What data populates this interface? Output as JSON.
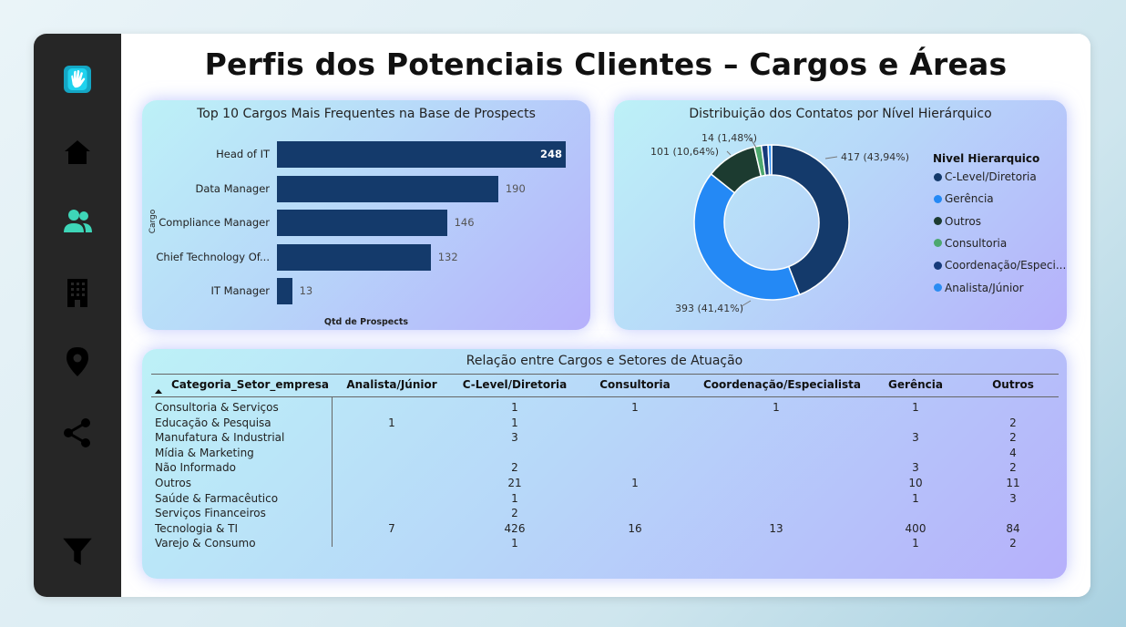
{
  "page": {
    "title": "Perfis dos Potenciais Clientes – Cargos e Áreas"
  },
  "sidebar": {
    "items": [
      {
        "icon": "hand-logo-icon"
      },
      {
        "icon": "home-icon"
      },
      {
        "icon": "people-icon"
      },
      {
        "icon": "building-icon"
      },
      {
        "icon": "location-pin-icon"
      },
      {
        "icon": "share-icon"
      },
      {
        "icon": "filter-icon"
      }
    ],
    "active_color": "#3ed6b8"
  },
  "bar_chart": {
    "title": "Top 10 Cargos Mais Frequentes na Base de Prospects",
    "ylabel": "Cargo",
    "xlabel": "Qtd de Prospects",
    "labels": [
      "Head of IT",
      "Data Manager",
      "Compliance Manager",
      "Chief Technology Of...",
      "IT Manager"
    ],
    "value_labels": [
      "248",
      "190",
      "146",
      "132",
      "13"
    ]
  },
  "donut_chart": {
    "title": "Distribuição dos Contatos por Nível Hierárquico",
    "legend_title": "Nivel Hierarquico",
    "legend": [
      "C-Level/Diretoria",
      "Gerência",
      "Outros",
      "Consultoria",
      "Coordenação/Especi...",
      "Analista/Júnior"
    ],
    "slice_labels": [
      "417 (43,94%)",
      "393 (41,41%)",
      "101 (10,64%)",
      "14 (1,48%)"
    ]
  },
  "matrix": {
    "title": "Relação entre Cargos e Setores de Atuação",
    "row_header": "Categoria_Setor_empresa",
    "sort_icon": "sort-ascending-icon",
    "columns": [
      "Analista/Júnior",
      "C-Level/Diretoria",
      "Consultoria",
      "Coordenação/Especialista",
      "Gerência",
      "Outros"
    ],
    "rows": [
      {
        "label": "Consultoria & Serviços",
        "cells": [
          "",
          "1",
          "1",
          "1",
          "1",
          ""
        ]
      },
      {
        "label": "Educação & Pesquisa",
        "cells": [
          "1",
          "1",
          "",
          "",
          "",
          "2"
        ]
      },
      {
        "label": "Manufatura & Industrial",
        "cells": [
          "",
          "3",
          "",
          "",
          "3",
          "2"
        ]
      },
      {
        "label": "Mídia & Marketing",
        "cells": [
          "",
          "",
          "",
          "",
          "",
          "4"
        ]
      },
      {
        "label": "Não Informado",
        "cells": [
          "",
          "2",
          "",
          "",
          "3",
          "2"
        ]
      },
      {
        "label": "Outros",
        "cells": [
          "",
          "21",
          "1",
          "",
          "10",
          "11"
        ]
      },
      {
        "label": "Saúde & Farmacêutico",
        "cells": [
          "",
          "1",
          "",
          "",
          "1",
          "3"
        ]
      },
      {
        "label": "Serviços Financeiros",
        "cells": [
          "",
          "2",
          "",
          "",
          "",
          ""
        ]
      },
      {
        "label": "Tecnologia & TI",
        "cells": [
          "7",
          "426",
          "16",
          "13",
          "400",
          "84"
        ]
      },
      {
        "label": "Varejo & Consumo",
        "cells": [
          "",
          "1",
          "",
          "",
          "1",
          "2"
        ]
      }
    ]
  },
  "chart_data": [
    {
      "type": "bar",
      "title": "Top 10 Cargos Mais Frequentes na Base de Prospects",
      "xlabel": "Qtd de Prospects",
      "ylabel": "Cargo",
      "categories": [
        "Head of IT",
        "Data Manager",
        "Compliance Manager",
        "Chief Technology Of...",
        "IT Manager"
      ],
      "values": [
        248,
        190,
        146,
        132,
        13
      ],
      "color": "#143a6b"
    },
    {
      "type": "pie",
      "title": "Distribuição dos Contatos por Nível Hierárquico",
      "legend_title": "Nivel Hierarquico",
      "legend_position": "right",
      "categories": [
        "C-Level/Diretoria",
        "Gerência",
        "Outros",
        "Consultoria",
        "Coordenação/Especi...",
        "Analista/Júnior"
      ],
      "values": [
        417,
        393,
        101,
        14,
        13,
        7
      ],
      "colors": [
        "#143a6b",
        "#2489f5",
        "#1c3b30",
        "#4da86e",
        "#163a7a",
        "#2a8cf2"
      ]
    }
  ]
}
